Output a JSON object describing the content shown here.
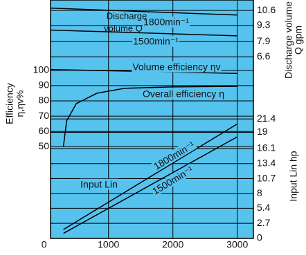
{
  "chart_data": {
    "type": "line",
    "background": "#56c2ee",
    "grid": true,
    "xlim": [
      100,
      3250
    ],
    "xticks": [
      0,
      1000,
      2000,
      3000
    ],
    "ylim": [
      -10,
      146
    ],
    "yticks": [
      50,
      60,
      70,
      80,
      90,
      100
    ],
    "y2lim": [
      0,
      42.7
    ],
    "y2ticks": [
      0,
      2.7,
      5.4,
      8.0,
      10.7,
      13.4,
      16.1,
      19.0,
      21.4
    ],
    "y3lim": [
      -9.1,
      11.5
    ],
    "y3ticks": [
      6.6,
      7.9,
      9.3,
      10.6
    ],
    "y_label": [
      "Efficiency",
      "η,ηv%"
    ],
    "y2_label": "Input Lin hp",
    "y3_label": [
      "Discharge volume",
      "Q gpm"
    ],
    "annotations": [
      [
        "Discharge",
        "volume Q"
      ],
      "Input Lin"
    ],
    "series": [
      {
        "name": "1800min⁻¹",
        "color": "#000000",
        "axis": "y3",
        "x": [
          100,
          3000
        ],
        "values": [
          10.8,
          10.2
        ]
      },
      {
        "name": "1500min⁻¹",
        "color": "#000000",
        "axis": "y3",
        "x": [
          100,
          3000
        ],
        "values": [
          8.9,
          8.4
        ]
      },
      {
        "name": "Volume efficiency ηv",
        "color": "#000000",
        "axis": "y",
        "x": [
          100,
          3000
        ],
        "values": [
          100.5,
          98
        ]
      },
      {
        "name": "Overall efficiency η",
        "color": "#000000",
        "axis": "y",
        "x": [
          300,
          350,
          500,
          820,
          1250,
          2000,
          3000
        ],
        "values": [
          50.2,
          66.9,
          78.2,
          85,
          88.2,
          89.1,
          89.5
        ]
      },
      {
        "name": "1800min⁻¹",
        "color": "#000000",
        "axis": "y2",
        "x": [
          300,
          3000
        ],
        "values": [
          1.6,
          20.5
        ]
      },
      {
        "name": "1500min⁻¹",
        "color": "#000000",
        "axis": "y2",
        "x": [
          300,
          3000
        ],
        "values": [
          0.9,
          18.2
        ]
      }
    ]
  }
}
